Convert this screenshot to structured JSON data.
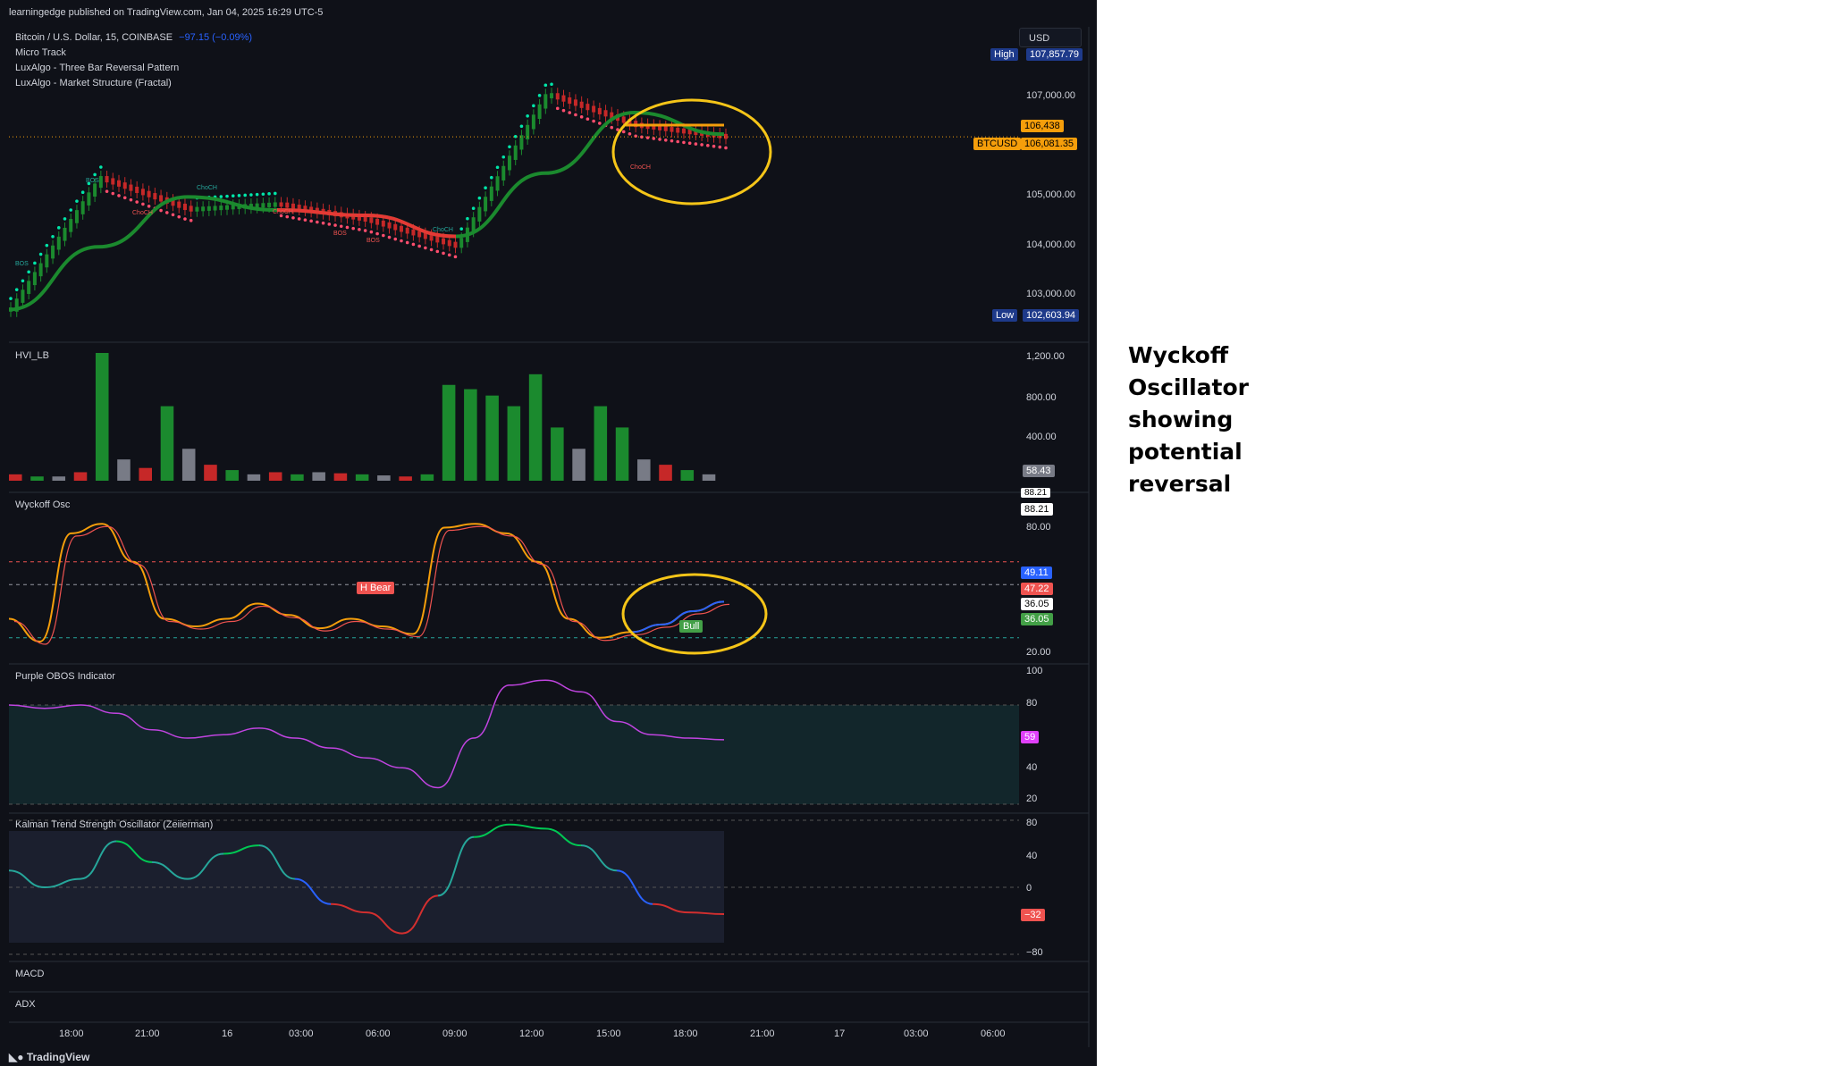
{
  "header": "learningedge published on TradingView.com, Jan 04, 2025 16:29 UTC-5",
  "main_pane": {
    "symbol": "Bitcoin / U.S. Dollar, 15, COINBASE",
    "change": "−97.15 (−0.09%)",
    "indicators": [
      "Micro Track",
      "LuxAlgo - Three Bar Reversal Pattern",
      "LuxAlgo - Market Structure (Fractal)"
    ],
    "currency_button": "USD",
    "high_label": "High",
    "high_value": "107,857.79",
    "low_label": "Low",
    "low_value": "102,603.94",
    "price_ticks": [
      "107,000.00",
      "105,000.00",
      "104,000.00",
      "103,000.00"
    ],
    "level_badge": "106,438",
    "symbol_badge": "BTCUSD",
    "last_price": "106,081.35",
    "structure_labels": [
      "BOS",
      "BOS",
      "ChoCH",
      "ChoCH",
      "ChoCH",
      "BOS",
      "BOS",
      "ChoCH",
      "ChoCH"
    ]
  },
  "hvi_pane": {
    "title": "HVI_LB",
    "ticks": [
      "1,200.00",
      "800.00",
      "400.00"
    ],
    "value": "58.43"
  },
  "wyckoff_pane": {
    "title": "Wyckoff Osc",
    "ticks": [
      "80.00",
      "20.00"
    ],
    "values": [
      "88.21",
      "88.21",
      "49.11",
      "47.22",
      "36.05",
      "36.05"
    ],
    "labels": [
      "H Bear",
      "Bull"
    ]
  },
  "obos_pane": {
    "title": "Purple OBOS Indicator",
    "ticks": [
      "100",
      "80",
      "40",
      "20"
    ],
    "value": "59"
  },
  "kalman_pane": {
    "title": "Kalman Trend Strength Oscillator (Zeiierman)",
    "ticks": [
      "80",
      "40",
      "0",
      "−80"
    ],
    "value": "−32"
  },
  "macd_pane": {
    "title": "MACD"
  },
  "adx_pane": {
    "title": "ADX"
  },
  "time_axis": [
    "18:00",
    "21:00",
    "16",
    "03:00",
    "06:00",
    "09:00",
    "12:00",
    "15:00",
    "18:00",
    "21:00",
    "17",
    "03:00",
    "06:00"
  ],
  "footer": "TradingView",
  "annotation": "Wyckoff Oscillator showing potential reversal",
  "colors": {
    "background": "#0f1118",
    "up": "#26a69a",
    "down": "#ef5350",
    "highlight": "#f5c518"
  },
  "chart_data": [
    {
      "type": "line",
      "title": "Bitcoin / U.S. Dollar, 15, COINBASE",
      "x": [
        "18:00",
        "21:00",
        "16",
        "03:00",
        "06:00",
        "09:00",
        "12:00",
        "15:00",
        "18:00"
      ],
      "series": [
        {
          "name": "BTCUSD",
          "values": [
            102800,
            105300,
            104700,
            104800,
            104500,
            104000,
            106900,
            106300,
            106081
          ]
        }
      ],
      "ylim": [
        102400,
        108000
      ]
    },
    {
      "type": "bar",
      "title": "HVI_LB",
      "values": [
        60,
        40,
        40,
        80,
        1200,
        200,
        120,
        700,
        300,
        150,
        100,
        60,
        80,
        60,
        80,
        70,
        60,
        50,
        40,
        60,
        900,
        860,
        800,
        700,
        1000,
        500,
        300,
        700,
        500,
        200,
        150,
        100,
        60
      ],
      "ylim": [
        0,
        1200
      ]
    },
    {
      "type": "line",
      "title": "Wyckoff Osc",
      "series": [
        {
          "name": "Wyckoff Osc",
          "values": [
            40,
            28,
            85,
            90,
            70,
            40,
            36,
            40,
            48,
            42,
            35,
            40,
            36,
            32,
            88,
            90,
            85,
            70,
            40,
            30,
            33,
            37,
            44,
            49
          ]
        }
      ],
      "ylim": [
        20,
        100
      ]
    },
    {
      "type": "line",
      "title": "Purple OBOS Indicator",
      "series": [
        {
          "name": "Purple OBOS Indicator",
          "values": [
            80,
            78,
            80,
            75,
            65,
            60,
            62,
            66,
            60,
            54,
            48,
            42,
            30,
            60,
            92,
            95,
            88,
            70,
            62,
            60,
            59
          ]
        }
      ],
      "ylim": [
        20,
        100
      ]
    },
    {
      "type": "line",
      "title": "Kalman Trend Strength Oscillator (Zeiierman)",
      "series": [
        {
          "name": "Kalman Trend Strength Oscillator (Zeiierman)",
          "values": [
            20,
            0,
            10,
            55,
            30,
            10,
            40,
            50,
            10,
            -20,
            -30,
            -55,
            -10,
            60,
            75,
            70,
            50,
            20,
            -20,
            -30,
            -32
          ]
        }
      ],
      "ylim": [
        -80,
        80
      ]
    }
  ]
}
